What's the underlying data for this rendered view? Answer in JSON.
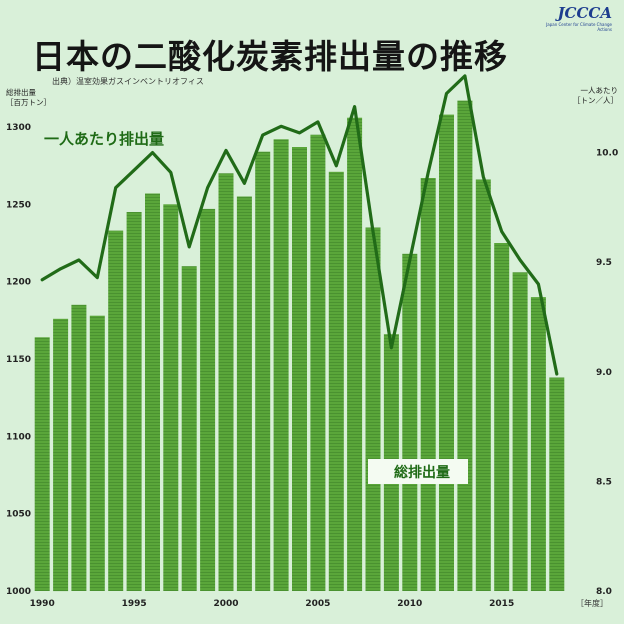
{
  "title": "日本の二酸化炭素排出量の推移",
  "source": "出典）温室効果ガスインベントリオフィス",
  "logo": {
    "text": "JCCCA",
    "subtitle": "Japan Center for Climate Change Actions"
  },
  "left_axis_label": {
    "line1": "総排出量",
    "line2": "［百万トン］"
  },
  "right_axis_label": {
    "line1": "一人あたり",
    "line2": "［トン／人］"
  },
  "x_unit": "［年度］",
  "series_label_line": "一人あたり排出量",
  "series_label_bar": "総排出量",
  "colors": {
    "bar": "#5aa63a",
    "line": "#216b18",
    "background": "#d9f0d9"
  },
  "chart_data": {
    "type": "bar",
    "x": [
      1990,
      1991,
      1992,
      1993,
      1994,
      1995,
      1996,
      1997,
      1998,
      1999,
      2000,
      2001,
      2002,
      2003,
      2004,
      2005,
      2006,
      2007,
      2008,
      2009,
      2010,
      2011,
      2012,
      2013,
      2014,
      2015,
      2016,
      2017,
      2018
    ],
    "series": [
      {
        "name": "総排出量",
        "type": "bar",
        "axis": "left",
        "values": [
          1164,
          1176,
          1185,
          1178,
          1233,
          1245,
          1257,
          1250,
          1210,
          1247,
          1270,
          1255,
          1284,
          1292,
          1287,
          1295,
          1271,
          1306,
          1235,
          1166,
          1218,
          1267,
          1308,
          1317,
          1266,
          1225,
          1206,
          1190,
          1138
        ]
      },
      {
        "name": "一人あたり排出量",
        "type": "line",
        "axis": "right",
        "values": [
          9.42,
          9.47,
          9.51,
          9.43,
          9.84,
          9.92,
          10.0,
          9.91,
          9.57,
          9.84,
          10.01,
          9.86,
          10.08,
          10.12,
          10.09,
          10.14,
          9.94,
          10.21,
          9.64,
          9.11,
          9.51,
          9.91,
          10.27,
          10.35,
          9.89,
          9.64,
          9.51,
          9.4,
          8.99
        ]
      }
    ],
    "x_ticks": [
      1990,
      1995,
      2000,
      2005,
      2010,
      2015
    ],
    "y_left": {
      "range": [
        1000,
        1320
      ],
      "ticks": [
        1000,
        1050,
        1100,
        1150,
        1200,
        1250,
        1300
      ]
    },
    "y_right": {
      "range": [
        8.0,
        10.45
      ],
      "ticks": [
        8.0,
        8.5,
        9.0,
        9.5,
        10.0
      ]
    }
  }
}
